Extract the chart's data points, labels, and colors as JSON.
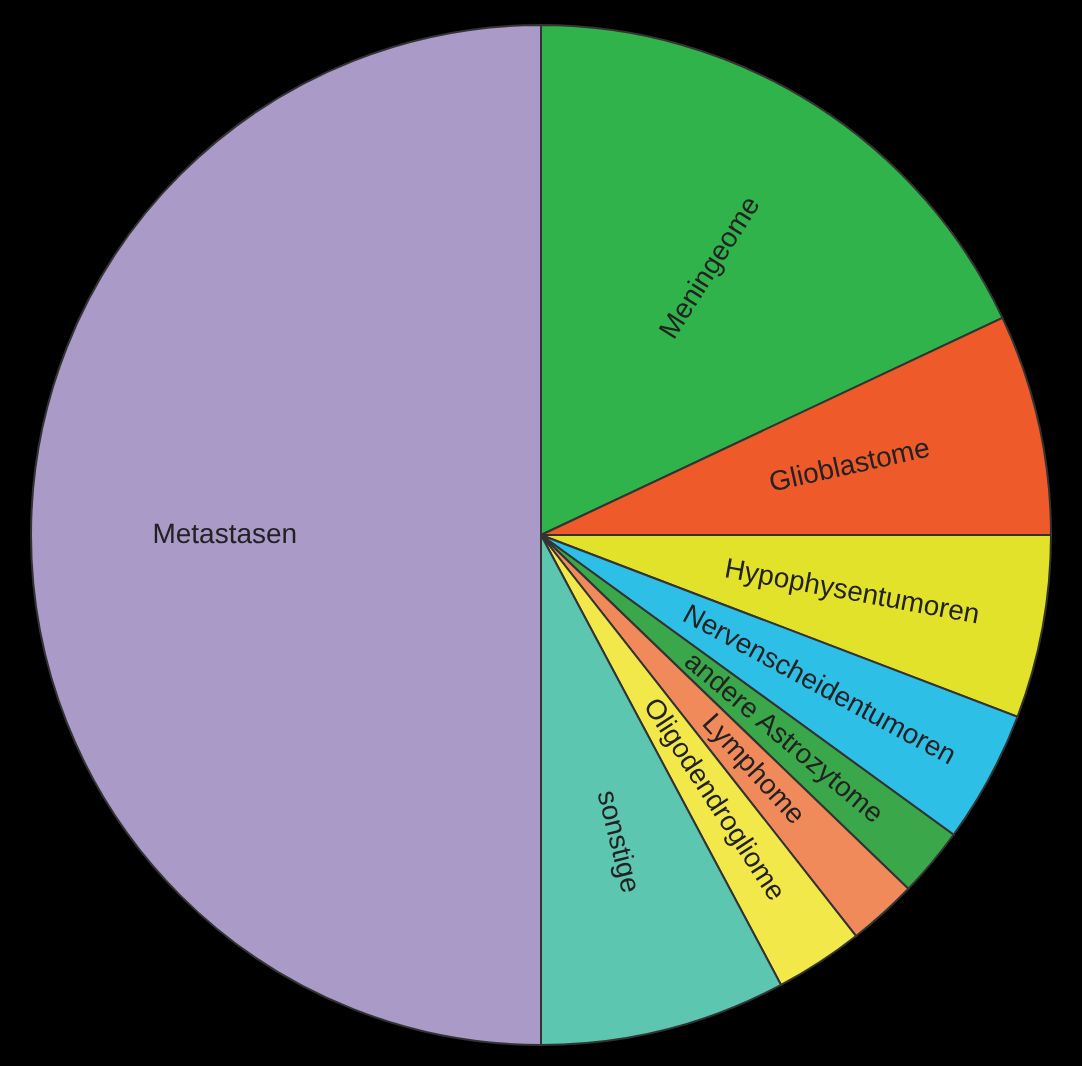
{
  "chart_data": {
    "type": "pie",
    "categories": [
      "Meningeome",
      "Glioblastome",
      "Hypophysentumoren",
      "Nervenscheidentumoren",
      "andere Astrozytome",
      "Lymphome",
      "Oligodendrogliome",
      "sonstige",
      "Metastasen"
    ],
    "values": [
      18,
      7,
      5.8,
      4.2,
      2.2,
      2.2,
      2.8,
      7.8,
      50
    ],
    "colors": [
      "#2fb34a",
      "#ef5a2a",
      "#e2e22a",
      "#2ebfe6",
      "#3aa84a",
      "#f08a5a",
      "#f2e84a",
      "#5cc6b0",
      "#a99ac8"
    ]
  }
}
